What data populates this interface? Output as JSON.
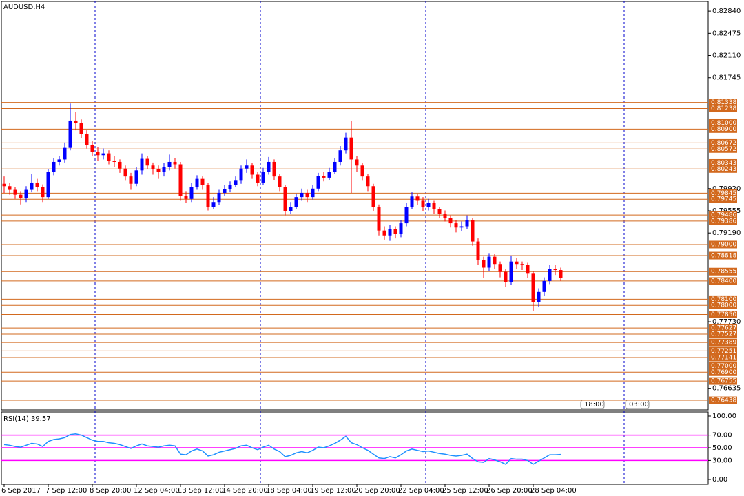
{
  "chart_data": {
    "type": "candlestick",
    "title": "AUDUSD,H4",
    "x": [
      "6 Sep 2017",
      null,
      null,
      null,
      null,
      null,
      null,
      null,
      "7 Sep 12:00",
      null,
      null,
      null,
      null,
      null,
      null,
      null,
      "8 Sep 20:00",
      null,
      null,
      null,
      null,
      null,
      null,
      null,
      "12 Sep 04:00",
      null,
      null,
      null,
      null,
      null,
      null,
      null,
      "13 Sep 12:00",
      null,
      null,
      null,
      null,
      null,
      null,
      null,
      "14 Sep 20:00",
      null,
      null,
      null,
      null,
      null,
      null,
      null,
      "18 Sep 04:00",
      null,
      null,
      null,
      null,
      null,
      null,
      null,
      "19 Sep 12:00",
      null,
      null,
      null,
      null,
      null,
      null,
      null,
      "20 Sep 20:00",
      null,
      null,
      null,
      null,
      null,
      null,
      null,
      "22 Sep 04:00",
      null,
      null,
      null,
      null,
      null,
      null,
      null,
      "25 Sep 12:00",
      null,
      null,
      null,
      null,
      null,
      null,
      null,
      "26 Sep 20:00",
      null,
      null,
      null,
      null,
      null,
      null,
      null,
      "28 Sep 04:00",
      null,
      null,
      null,
      null,
      null
    ],
    "open": [
      0.8,
      0.7996,
      0.799,
      0.7982,
      0.7976,
      0.799,
      0.8002,
      0.7995,
      0.7978,
      0.802,
      0.8036,
      0.804,
      0.8059,
      0.8104,
      0.81,
      0.8082,
      0.8064,
      0.8052,
      0.8047,
      0.805,
      0.8038,
      0.8036,
      0.8025,
      0.8012,
      0.8,
      0.8022,
      0.8041,
      0.803,
      0.8024,
      0.8019,
      0.8028,
      0.8036,
      0.8032,
      0.798,
      0.7975,
      0.7995,
      0.8008,
      0.7998,
      0.7962,
      0.797,
      0.7985,
      0.7991,
      0.7998,
      0.8005,
      0.8025,
      0.803,
      0.8015,
      0.8002,
      0.802,
      0.8036,
      0.8012,
      0.7995,
      0.7955,
      0.7962,
      0.7978,
      0.7985,
      0.7978,
      0.7992,
      0.8013,
      0.801,
      0.802,
      0.8036,
      0.8055,
      0.8076,
      0.804,
      0.803,
      0.8012,
      0.7996,
      0.7962,
      0.7923,
      0.7915,
      0.7925,
      0.7918,
      0.7935,
      0.7962,
      0.7979,
      0.7972,
      0.7962,
      0.7968,
      0.7958,
      0.795,
      0.7944,
      0.7935,
      0.7928,
      0.793,
      0.794,
      0.7905,
      0.7875,
      0.7862,
      0.788,
      0.7868,
      0.7855,
      0.7838,
      0.7872,
      0.7868,
      0.7866,
      0.7852,
      0.7805,
      0.7822,
      0.784,
      0.786,
      0.7858
    ],
    "high": [
      0.8012,
      0.8002,
      0.7995,
      0.7988,
      0.7996,
      0.8016,
      0.8008,
      0.7999,
      0.8024,
      0.8042,
      0.8046,
      0.8068,
      0.8132,
      0.8118,
      0.8106,
      0.8088,
      0.807,
      0.806,
      0.8058,
      0.8055,
      0.8046,
      0.804,
      0.803,
      0.8018,
      0.8028,
      0.805,
      0.8046,
      0.8035,
      0.803,
      0.8034,
      0.8048,
      0.8042,
      0.8036,
      0.7988,
      0.8002,
      0.8014,
      0.8012,
      0.8002,
      0.7978,
      0.799,
      0.7998,
      0.8004,
      0.8012,
      0.803,
      0.804,
      0.8034,
      0.802,
      0.8026,
      0.8044,
      0.804,
      0.8016,
      0.7998,
      0.797,
      0.7984,
      0.7992,
      0.799,
      0.7998,
      0.8018,
      0.802,
      0.8026,
      0.8042,
      0.8062,
      0.8084,
      0.8104,
      0.8045,
      0.8034,
      0.8016,
      0.8,
      0.7966,
      0.793,
      0.7932,
      0.793,
      0.794,
      0.7968,
      0.7986,
      0.7984,
      0.7978,
      0.7975,
      0.7972,
      0.7962,
      0.7956,
      0.7948,
      0.794,
      0.7938,
      0.7948,
      0.7944,
      0.791,
      0.788,
      0.7886,
      0.7885,
      0.7872,
      0.786,
      0.7882,
      0.7878,
      0.7872,
      0.787,
      0.7856,
      0.7828,
      0.7846,
      0.7866,
      0.7866,
      0.7862
    ],
    "low": [
      0.7985,
      0.7982,
      0.7975,
      0.7966,
      0.797,
      0.7986,
      0.7988,
      0.797,
      0.7975,
      0.8014,
      0.803,
      0.8035,
      0.8055,
      0.8088,
      0.8075,
      0.8058,
      0.8045,
      0.8038,
      0.804,
      0.8032,
      0.8028,
      0.8018,
      0.8005,
      0.799,
      0.7996,
      0.8015,
      0.8024,
      0.8015,
      0.8008,
      0.8012,
      0.8022,
      0.8025,
      0.7972,
      0.7968,
      0.797,
      0.799,
      0.799,
      0.7956,
      0.7958,
      0.7965,
      0.798,
      0.7986,
      0.7994,
      0.8,
      0.8018,
      0.8008,
      0.7996,
      0.7998,
      0.8015,
      0.8006,
      0.7988,
      0.7948,
      0.795,
      0.7958,
      0.7972,
      0.797,
      0.7974,
      0.7988,
      0.8004,
      0.8006,
      0.8016,
      0.803,
      0.805,
      0.7985,
      0.802,
      0.8005,
      0.7988,
      0.7955,
      0.7915,
      0.7908,
      0.7906,
      0.791,
      0.7912,
      0.793,
      0.7958,
      0.7965,
      0.7955,
      0.7956,
      0.795,
      0.7944,
      0.7938,
      0.7928,
      0.792,
      0.7922,
      0.7925,
      0.7898,
      0.7866,
      0.7845,
      0.7856,
      0.786,
      0.7846,
      0.783,
      0.7834,
      0.786,
      0.7858,
      0.7845,
      0.779,
      0.7798,
      0.7816,
      0.7835,
      0.785,
      0.784
    ],
    "close": [
      0.7996,
      0.799,
      0.7982,
      0.7976,
      0.799,
      0.8002,
      0.7995,
      0.7978,
      0.802,
      0.8036,
      0.804,
      0.8059,
      0.8104,
      0.81,
      0.8082,
      0.8064,
      0.8052,
      0.8047,
      0.805,
      0.8038,
      0.8036,
      0.8025,
      0.8012,
      0.8,
      0.8022,
      0.8041,
      0.803,
      0.8024,
      0.8019,
      0.8028,
      0.8036,
      0.8032,
      0.798,
      0.7975,
      0.7995,
      0.8008,
      0.7998,
      0.7962,
      0.797,
      0.7985,
      0.7991,
      0.7998,
      0.8005,
      0.8025,
      0.803,
      0.8015,
      0.8002,
      0.802,
      0.8036,
      0.8012,
      0.7995,
      0.7955,
      0.7962,
      0.7978,
      0.7985,
      0.7978,
      0.7992,
      0.8013,
      0.801,
      0.802,
      0.8036,
      0.8055,
      0.8076,
      0.804,
      0.803,
      0.8012,
      0.7996,
      0.7962,
      0.7923,
      0.7915,
      0.7925,
      0.7918,
      0.7935,
      0.7962,
      0.7979,
      0.7972,
      0.7962,
      0.7968,
      0.7958,
      0.795,
      0.7944,
      0.7935,
      0.7928,
      0.793,
      0.794,
      0.7905,
      0.7875,
      0.7862,
      0.788,
      0.7868,
      0.7855,
      0.7838,
      0.7872,
      0.7868,
      0.7866,
      0.7852,
      0.7805,
      0.7822,
      0.784,
      0.786,
      0.7858,
      0.7845
    ],
    "bull_color": "#0000ff",
    "bear_color": "#ff0000",
    "ylim": [
      0.7628,
      0.83
    ],
    "yticks": [
      {
        "value": 0.8284,
        "label": "0.82840"
      },
      0.82475,
      {
        "value": 0.8211,
        "label": "0.82110"
      },
      0.81745,
      {
        "value": 0.7992,
        "label": "0.79920"
      },
      0.79555,
      {
        "value": 0.7919,
        "label": "0.79190"
      },
      {
        "value": 0.7773,
        "label": "0.77730"
      },
      0.76635
    ],
    "level_color": "#d2691e",
    "levels": [
      0.81338,
      0.81238,
      {
        "value": 0.81,
        "label": "0.81000"
      },
      {
        "value": 0.809,
        "label": "0.80900"
      },
      0.80672,
      0.80572,
      0.80343,
      0.80243,
      0.79845,
      0.79745,
      0.79486,
      0.79386,
      {
        "value": 0.79,
        "label": "0.79000"
      },
      0.78818,
      0.78555,
      {
        "value": 0.784,
        "label": "0.78400"
      },
      {
        "value": 0.781,
        "label": "0.78100"
      },
      {
        "value": 0.78,
        "label": "0.78000"
      },
      {
        "value": 0.7785,
        "label": "0.77850"
      },
      0.77627,
      0.77527,
      0.77389,
      0.77251,
      0.77141,
      {
        "value": 0.77,
        "label": "0.77000"
      },
      {
        "value": 0.769,
        "label": "0.76900"
      },
      0.76755,
      0.76438
    ],
    "time_tags": [
      "18:00",
      "03:00"
    ],
    "indicator": {
      "title": "RSI(14) 39.57",
      "color": "#1e90ff",
      "level_color": "#ff00ff",
      "ylim": [
        -7.6,
        106.5
      ],
      "yticks": [
        {
          "value": 100,
          "label": "100.00"
        },
        {
          "value": 70,
          "label": "70.00"
        },
        {
          "value": 50,
          "label": "50.00"
        },
        {
          "value": 30,
          "label": "30.00"
        },
        {
          "value": 0,
          "label": "0.00"
        }
      ],
      "levels": [
        70,
        50,
        30
      ],
      "values": [
        55,
        54,
        52,
        51,
        54,
        57,
        56,
        52,
        60,
        63,
        64,
        66,
        71,
        72,
        70,
        66,
        62,
        60,
        60,
        58,
        57,
        55,
        52,
        49,
        53,
        56,
        53,
        52,
        51,
        53,
        54,
        53,
        40,
        39,
        45,
        48,
        45,
        37,
        39,
        43,
        45,
        47,
        49,
        53,
        54,
        50,
        47,
        51,
        54,
        48,
        44,
        36,
        38,
        42,
        44,
        42,
        46,
        51,
        50,
        53,
        57,
        62,
        68,
        58,
        55,
        50,
        46,
        40,
        34,
        33,
        36,
        34,
        39,
        45,
        48,
        46,
        44,
        45,
        43,
        41,
        40,
        38,
        37,
        38,
        40,
        33,
        28,
        27,
        33,
        31,
        28,
        24,
        33,
        32,
        32,
        30,
        24,
        29,
        34,
        39,
        39,
        39.57
      ]
    }
  }
}
